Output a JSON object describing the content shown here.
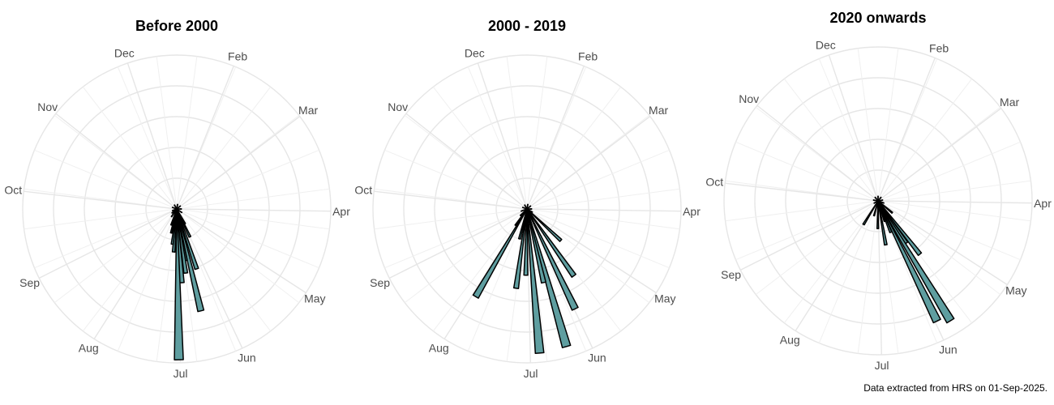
{
  "caption": "Data extracted from HRS on 01-Sep-2025.",
  "bar_fill": "#5f9ea0",
  "bar_stroke": "#000000",
  "grid_color": "#e6e6e6",
  "chart_data": [
    {
      "type": "polar-bar",
      "title": "Before 2000",
      "month_labels": [
        "Dec",
        "Feb",
        "Mar",
        "Apr",
        "May",
        "Jun",
        "Jul",
        "Aug",
        "Sep",
        "Oct",
        "Nov"
      ],
      "rose": [
        {
          "dir_deg": 150.5,
          "value": 0.11
        },
        {
          "dir_deg": 154.7,
          "value": 0.2
        },
        {
          "dir_deg": 161.6,
          "value": 0.41
        },
        {
          "dir_deg": 166.7,
          "value": 0.68
        },
        {
          "dir_deg": 170.3,
          "value": 0.34
        },
        {
          "dir_deg": 172.0,
          "value": 0.42
        },
        {
          "dir_deg": 176.0,
          "value": 0.48
        },
        {
          "dir_deg": 179.2,
          "value": 0.98
        },
        {
          "dir_deg": 184.1,
          "value": 0.28
        },
        {
          "dir_deg": 187.3,
          "value": 0.23
        },
        {
          "dir_deg": 193.0,
          "value": 0.16
        },
        {
          "dir_deg": 198.6,
          "value": 0.11
        },
        {
          "dir_deg": 214.4,
          "value": 0.06
        },
        {
          "dir_deg": 230.0,
          "value": 0.04
        },
        {
          "dir_deg": 250.0,
          "value": 0.03
        },
        {
          "dir_deg": 290.0,
          "value": 0.03
        },
        {
          "dir_deg": 330.0,
          "value": 0.03
        },
        {
          "dir_deg": 10.0,
          "value": 0.03
        },
        {
          "dir_deg": 50.0,
          "value": 0.03
        },
        {
          "dir_deg": 90.0,
          "value": 0.03
        },
        {
          "dir_deg": 125.0,
          "value": 0.04
        }
      ]
    },
    {
      "type": "polar-bar",
      "title": "2000 - 2019",
      "month_labels": [
        "Dec",
        "Feb",
        "Mar",
        "Apr",
        "May",
        "Jun",
        "Jul",
        "Aug",
        "Sep",
        "Oct",
        "Nov"
      ],
      "rose": [
        {
          "dir_deg": 133.0,
          "value": 0.3
        },
        {
          "dir_deg": 145.0,
          "value": 0.53
        },
        {
          "dir_deg": 154.3,
          "value": 0.72
        },
        {
          "dir_deg": 164.0,
          "value": 0.93
        },
        {
          "dir_deg": 167.3,
          "value": 0.49
        },
        {
          "dir_deg": 175.0,
          "value": 0.94
        },
        {
          "dir_deg": 181.0,
          "value": 0.43
        },
        {
          "dir_deg": 187.8,
          "value": 0.52
        },
        {
          "dir_deg": 194.0,
          "value": 0.2
        },
        {
          "dir_deg": 210.3,
          "value": 0.66
        },
        {
          "dir_deg": 215.0,
          "value": 0.13
        },
        {
          "dir_deg": 225.0,
          "value": 0.06
        },
        {
          "dir_deg": 250.0,
          "value": 0.04
        },
        {
          "dir_deg": 290.0,
          "value": 0.03
        },
        {
          "dir_deg": 330.0,
          "value": 0.03
        },
        {
          "dir_deg": 10.0,
          "value": 0.03
        },
        {
          "dir_deg": 50.0,
          "value": 0.03
        },
        {
          "dir_deg": 90.0,
          "value": 0.03
        },
        {
          "dir_deg": 120.0,
          "value": 0.04
        }
      ]
    },
    {
      "type": "polar-bar",
      "title": "2020 onwards",
      "month_labels": [
        "Dec",
        "Feb",
        "Mar",
        "Apr",
        "May",
        "Jun",
        "Jul",
        "Aug",
        "Sep",
        "Oct",
        "Nov"
      ],
      "rose": [
        {
          "dir_deg": 130.0,
          "value": 0.12
        },
        {
          "dir_deg": 141.9,
          "value": 0.44
        },
        {
          "dir_deg": 146.0,
          "value": 0.33
        },
        {
          "dir_deg": 148.9,
          "value": 0.91
        },
        {
          "dir_deg": 153.9,
          "value": 0.87
        },
        {
          "dir_deg": 158.0,
          "value": 0.22
        },
        {
          "dir_deg": 162.0,
          "value": 0.14
        },
        {
          "dir_deg": 170.1,
          "value": 0.29
        },
        {
          "dir_deg": 180.5,
          "value": 0.18
        },
        {
          "dir_deg": 195.0,
          "value": 0.1
        },
        {
          "dir_deg": 211.6,
          "value": 0.18
        },
        {
          "dir_deg": 240.0,
          "value": 0.03
        },
        {
          "dir_deg": 280.0,
          "value": 0.03
        },
        {
          "dir_deg": 320.0,
          "value": 0.03
        },
        {
          "dir_deg": 0.0,
          "value": 0.03
        },
        {
          "dir_deg": 40.0,
          "value": 0.03
        },
        {
          "dir_deg": 80.0,
          "value": 0.03
        },
        {
          "dir_deg": 110.0,
          "value": 0.04
        }
      ]
    }
  ]
}
